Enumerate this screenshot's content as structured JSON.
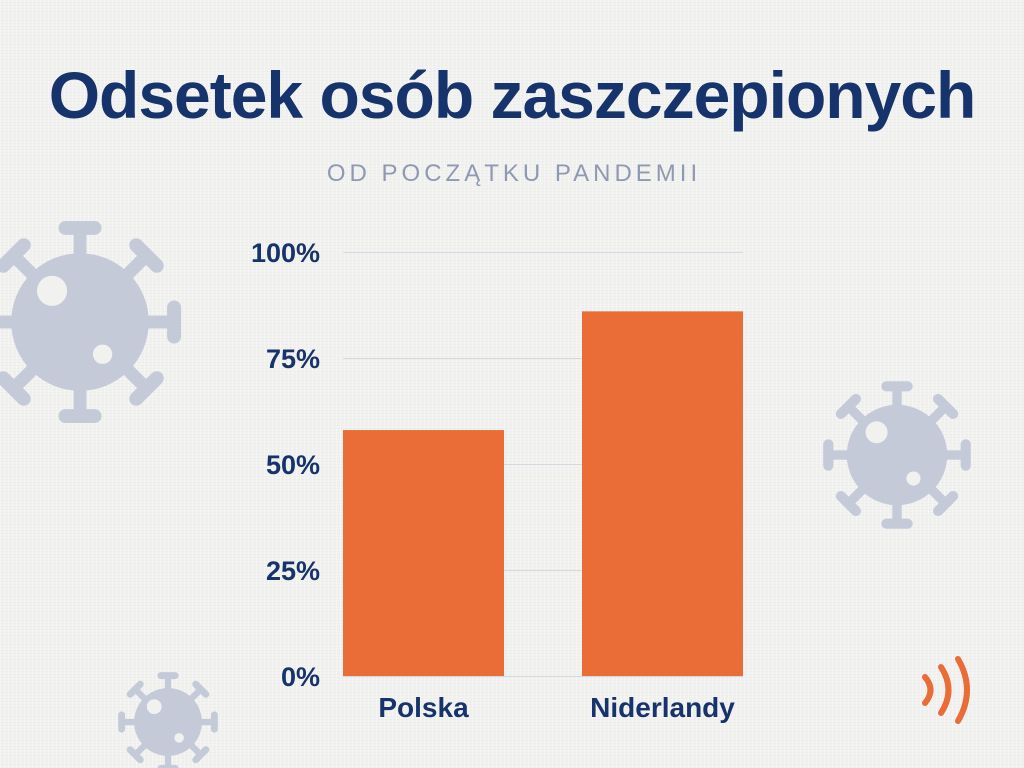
{
  "colors": {
    "background": "#f1f1f0",
    "text": "#17336b",
    "subtitle": "#8e99b2",
    "bar": "#ea6c37",
    "grid": "#d3d8e2",
    "virus": "#c5cad9",
    "logo": "#ea6c37"
  },
  "icons": {
    "decorations": [
      "virus-icon",
      "virus-icon",
      "virus-icon"
    ],
    "logo": "signal-waves-icon"
  },
  "chart_data": {
    "type": "bar",
    "title": "Odsetek osób zaszczepionych",
    "subtitle": "OD POCZĄTKU PANDEMII",
    "categories": [
      "Polska",
      "Niderlandy"
    ],
    "values": [
      58,
      86
    ],
    "ylim": [
      0,
      100
    ],
    "yticks": [
      0,
      25,
      50,
      75,
      100
    ],
    "ytick_labels": [
      "0%",
      "25%",
      "50%",
      "75%",
      "100%"
    ],
    "grid": true,
    "legend": false
  }
}
